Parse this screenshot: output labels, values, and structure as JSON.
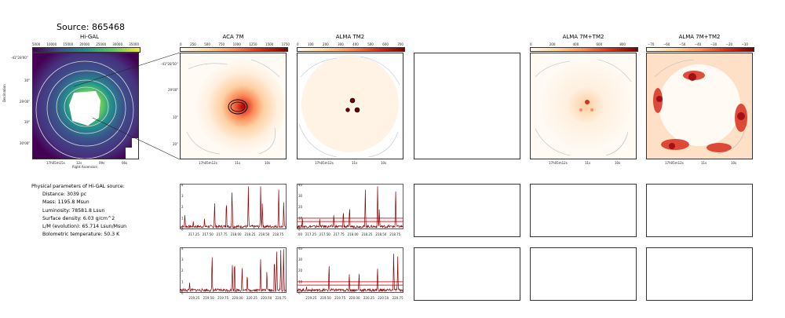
{
  "source_title": "Source: 865468",
  "panels": {
    "higal": {
      "title": "Hi-GAL"
    },
    "aca": {
      "title": "ACA 7M"
    },
    "tm2": {
      "title": "ALMA TM2"
    },
    "combo1": {
      "title": "ALMA 7M+TM2"
    },
    "combo2": {
      "title": "ALMA 7M+TM2"
    }
  },
  "colorbars": {
    "higal": [
      "5000",
      "10000",
      "15000",
      "20000",
      "25000",
      "30000",
      "35000"
    ],
    "aca": [
      "0",
      "250",
      "500",
      "750",
      "1000",
      "1250",
      "1500",
      "1750"
    ],
    "tm2": [
      "0",
      "100",
      "200",
      "300",
      "400",
      "500",
      "600",
      "700"
    ],
    "combo1": [
      "0",
      "200",
      "400",
      "600",
      "800"
    ],
    "combo2": [
      "−70",
      "−60",
      "−50",
      "−40",
      "−30",
      "−20",
      "−10"
    ]
  },
  "axes": {
    "dec_label": "Declination",
    "ra_label": "Right Ascension",
    "higal_dec_ticks": [
      "-41°28'00\"",
      "30\"",
      "29'00\"",
      "30\"",
      "30'00\""
    ],
    "higal_ra_ticks": [
      "17h05m15s",
      "12s",
      "09s",
      "06s"
    ],
    "aca_dec_ticks": [
      "-41°28'50\"",
      "29'00\"",
      "10\"",
      "20\""
    ],
    "map_ra_ticks": [
      "17h05m12s",
      "11s",
      "10s"
    ]
  },
  "params": {
    "heading": "Physical parameters of Hi-GAL source:",
    "distance": "Distance: 3039 pc",
    "mass": "Mass: 1195.8 Msun",
    "luminosity": "Luminosity: 78581.8 Lsun",
    "surface_density": "Surface density: 6.03 g/cm^2",
    "lm": "L/M (evolution): 65.714 Lsun/Msun",
    "temperature": "Bolometric temperature: 50.3 K"
  },
  "chart_data": [
    {
      "type": "line",
      "panel": "aca-spectrum-1",
      "x_ticks": [
        "217.25",
        "217.50",
        "217.75",
        "218.00",
        "218.25",
        "218.50",
        "218.75"
      ],
      "y_ticks": [
        "0",
        "1",
        "2",
        "3",
        "4"
      ],
      "xlim": [
        217.0,
        218.9
      ],
      "ylim": [
        0,
        4.1
      ],
      "peaks": [
        [
          217.09,
          1.6
        ],
        [
          217.24,
          0.8
        ],
        [
          217.44,
          1.1
        ],
        [
          217.62,
          2.6
        ],
        [
          217.83,
          3.0
        ],
        [
          217.93,
          4.0
        ],
        [
          218.22,
          4.0
        ],
        [
          218.44,
          4.0
        ],
        [
          218.47,
          2.6
        ],
        [
          218.76,
          4.0
        ],
        [
          218.85,
          2.7
        ]
      ]
    },
    {
      "type": "line",
      "panel": "tm2-spectrum-1",
      "x_ticks": [
        "217.00",
        "217.25",
        "217.50",
        "217.75",
        "218.00",
        "218.25",
        "218.50",
        "218.75"
      ],
      "y_ticks": [
        "0",
        "10",
        "20",
        "30",
        "40"
      ],
      "xlim": [
        217.0,
        218.9
      ],
      "ylim": [
        0,
        41
      ],
      "threshold_lines": [
        10,
        7
      ],
      "peaks": [
        [
          217.1,
          12
        ],
        [
          217.41,
          10
        ],
        [
          217.66,
          16
        ],
        [
          217.83,
          20
        ],
        [
          217.94,
          24
        ],
        [
          218.22,
          37
        ],
        [
          218.44,
          40
        ],
        [
          218.47,
          20
        ],
        [
          218.76,
          38
        ]
      ]
    },
    {
      "type": "line",
      "panel": "aca-spectrum-2",
      "x_ticks": [
        "219.25",
        "219.50",
        "219.75",
        "220.00",
        "220.25",
        "220.50",
        "220.75"
      ],
      "y_ticks": [
        "0",
        "1",
        "2",
        "3",
        "4"
      ],
      "xlim": [
        219.0,
        220.85
      ],
      "ylim": [
        0,
        4.1
      ],
      "peaks": [
        [
          219.17,
          1.0
        ],
        [
          219.56,
          4.0
        ],
        [
          219.91,
          2.7
        ],
        [
          219.95,
          3.5
        ],
        [
          220.08,
          2.6
        ],
        [
          220.17,
          2.0
        ],
        [
          220.4,
          3.6
        ],
        [
          220.51,
          2.2
        ],
        [
          220.64,
          3.8
        ],
        [
          220.68,
          4.0
        ],
        [
          220.75,
          4.0
        ],
        [
          220.8,
          4.0
        ]
      ]
    },
    {
      "type": "line",
      "panel": "tm2-spectrum-2",
      "x_ticks": [
        "219.25",
        "219.50",
        "219.75",
        "220.00",
        "220.25",
        "220.50",
        "220.75"
      ],
      "y_ticks": [
        "0",
        "10",
        "20",
        "30",
        "40"
      ],
      "xlim": [
        219.0,
        220.85
      ],
      "ylim": [
        0,
        41
      ],
      "threshold_lines": [
        10,
        7
      ],
      "peaks": [
        [
          219.17,
          6
        ],
        [
          219.56,
          30
        ],
        [
          219.91,
          18
        ],
        [
          220.08,
          20
        ],
        [
          220.4,
          26
        ],
        [
          220.68,
          38
        ],
        [
          220.75,
          34
        ]
      ]
    }
  ]
}
